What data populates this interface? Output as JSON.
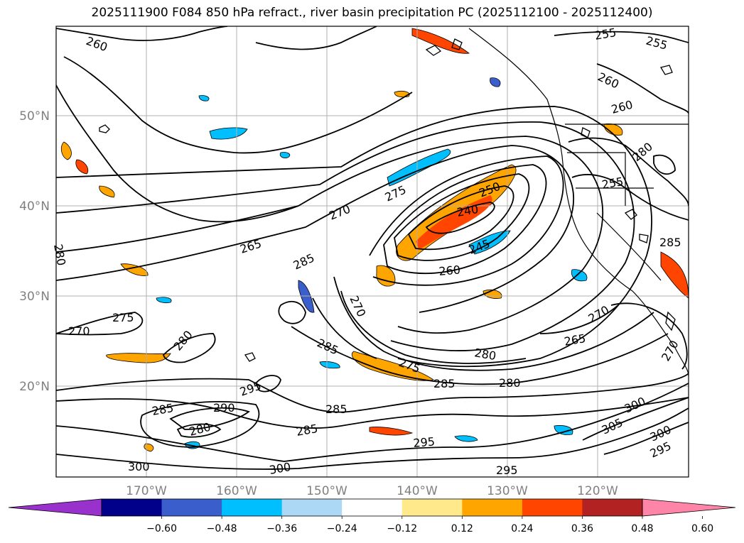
{
  "title": "2025111900 F084 850 hPa refract., river basin precipitation PC (2025112100 - 2025112400)",
  "latitude_labels": [
    "50°N",
    "40°N",
    "30°N",
    "20°N"
  ],
  "longitude_labels": [
    "170°W",
    "160°W",
    "150°W",
    "140°W",
    "130°W",
    "120°W"
  ],
  "contour_labels": [
    "260",
    "255",
    "255",
    "260",
    "260",
    "265",
    "270",
    "275",
    "250",
    "240",
    "245",
    "260",
    "285",
    "270",
    "275",
    "280",
    "285",
    "275",
    "280",
    "265",
    "270",
    "280",
    "285",
    "280",
    "290",
    "295",
    "285",
    "285",
    "285",
    "295",
    "295",
    "300",
    "300",
    "305",
    "300",
    "295",
    "300",
    "270",
    "255",
    "280",
    "285",
    "270",
    "280"
  ],
  "colorbar": {
    "tick_labels": [
      "−0.60",
      "−0.48",
      "−0.36",
      "−0.24",
      "−0.12",
      "0.12",
      "0.24",
      "0.36",
      "0.48",
      "0.60"
    ],
    "colors": [
      "#9932cc",
      "#00008b",
      "#3a5fcd",
      "#00bfff",
      "#add8f5",
      "#ffffff",
      "#ffe98a",
      "#ffa500",
      "#ff4500",
      "#b22222",
      "#ff85a8"
    ],
    "extend": "both"
  },
  "colors": {
    "contour": "#000000",
    "gridline": "#b0b0b0",
    "coastline": "#000000",
    "axis_label": "#808080"
  }
}
